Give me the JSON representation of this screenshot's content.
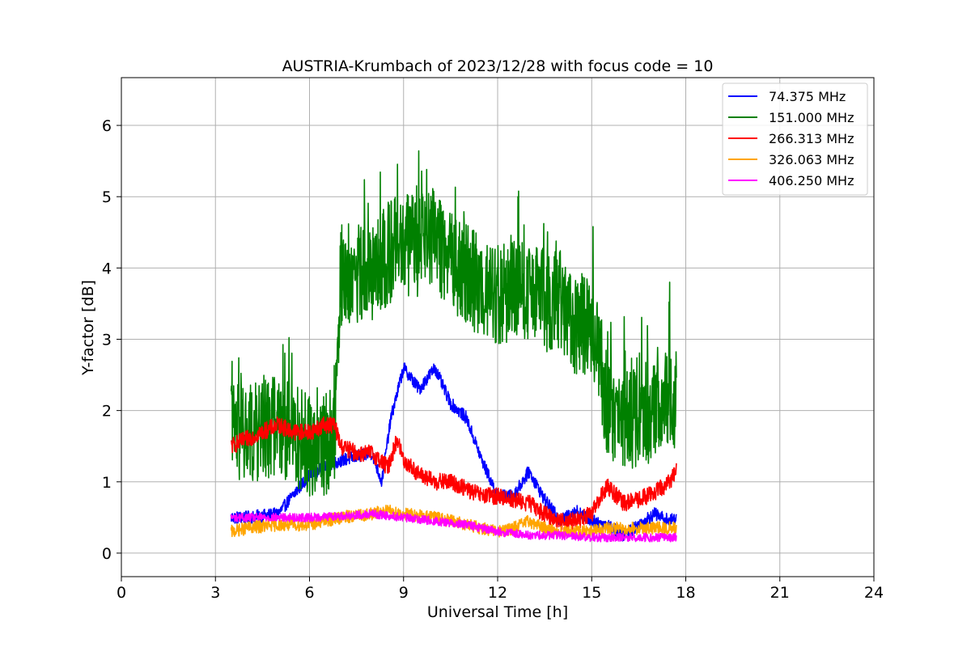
{
  "chart_data": {
    "type": "line",
    "title": "AUSTRIA-Krumbach of 2023/12/28 with focus code = 10",
    "xlabel": "Universal Time [h]",
    "ylabel": "Y-factor [dB]",
    "xlim": [
      0,
      24
    ],
    "ylim": [
      -0.33,
      6.67
    ],
    "xticks": [
      0,
      3,
      6,
      9,
      12,
      15,
      18,
      21,
      24
    ],
    "yticks": [
      0,
      1,
      2,
      3,
      4,
      5,
      6
    ],
    "grid": true,
    "legend_position": "top-right",
    "series": [
      {
        "name": " 74.375 MHz",
        "color": "#0000ff",
        "x": [
          3.5,
          4.0,
          5.0,
          6.0,
          7.0,
          7.5,
          8.0,
          8.3,
          8.6,
          9.0,
          9.5,
          10.0,
          10.5,
          11.0,
          11.5,
          12.0,
          12.5,
          13.0,
          13.5,
          14.0,
          14.5,
          15.0,
          15.5,
          16.0,
          16.5,
          17.0,
          17.5,
          17.7
        ],
        "y": [
          0.5,
          0.5,
          0.55,
          1.1,
          1.3,
          1.35,
          1.4,
          1.0,
          1.9,
          2.6,
          2.3,
          2.6,
          2.1,
          1.9,
          1.3,
          0.8,
          0.8,
          1.15,
          0.75,
          0.45,
          0.6,
          0.45,
          0.4,
          0.25,
          0.4,
          0.55,
          0.45,
          0.5
        ],
        "noise": 0.09
      },
      {
        "name": "151.000 MHz",
        "color": "#008000",
        "x": [
          3.5,
          4.0,
          5.0,
          6.0,
          6.5,
          6.8,
          7.0,
          7.5,
          8.0,
          8.5,
          9.0,
          9.5,
          10.0,
          10.5,
          11.0,
          11.5,
          12.0,
          12.5,
          13.0,
          13.5,
          14.0,
          14.5,
          15.0,
          15.2,
          15.5,
          16.0,
          16.5,
          17.0,
          17.5,
          17.7
        ],
        "y": [
          1.5,
          1.4,
          1.6,
          1.3,
          1.3,
          1.5,
          3.7,
          3.7,
          3.7,
          4.0,
          4.1,
          4.1,
          4.2,
          3.9,
          3.7,
          3.5,
          3.4,
          3.5,
          3.4,
          3.3,
          3.3,
          3.0,
          2.9,
          2.7,
          1.8,
          1.6,
          1.7,
          1.8,
          1.9,
          1.8
        ],
        "noise": 0.9
      },
      {
        "name": "266.313 MHz",
        "color": "#ff0000",
        "x": [
          3.5,
          4.0,
          4.5,
          5.0,
          5.5,
          6.0,
          6.5,
          6.8,
          7.0,
          7.5,
          8.0,
          8.5,
          8.8,
          9.0,
          9.5,
          10.0,
          10.5,
          11.0,
          11.5,
          12.0,
          12.5,
          13.0,
          13.5,
          14.0,
          14.5,
          15.0,
          15.5,
          16.0,
          16.5,
          17.0,
          17.5,
          17.7
        ],
        "y": [
          1.5,
          1.6,
          1.7,
          1.8,
          1.7,
          1.7,
          1.8,
          1.8,
          1.5,
          1.4,
          1.4,
          1.2,
          1.6,
          1.3,
          1.1,
          1.0,
          1.0,
          0.9,
          0.8,
          0.8,
          0.75,
          0.7,
          0.55,
          0.45,
          0.45,
          0.55,
          0.95,
          0.7,
          0.75,
          0.85,
          1.0,
          1.2
        ],
        "noise": 0.12
      },
      {
        "name": "326.063 MHz",
        "color": "#ffa500",
        "x": [
          3.5,
          4.0,
          5.0,
          6.0,
          7.0,
          8.0,
          8.5,
          9.0,
          10.0,
          11.0,
          12.0,
          12.5,
          13.0,
          13.5,
          14.0,
          14.5,
          15.0,
          15.5,
          16.0,
          17.0,
          17.7
        ],
        "y": [
          0.3,
          0.35,
          0.4,
          0.4,
          0.5,
          0.55,
          0.6,
          0.55,
          0.5,
          0.4,
          0.3,
          0.35,
          0.45,
          0.35,
          0.3,
          0.3,
          0.3,
          0.35,
          0.35,
          0.35,
          0.35
        ],
        "noise": 0.09
      },
      {
        "name": "406.250 MHz",
        "color": "#ff00ff",
        "x": [
          3.5,
          4.0,
          5.0,
          6.0,
          7.0,
          8.0,
          9.0,
          10.0,
          11.0,
          12.0,
          13.0,
          14.0,
          15.0,
          16.0,
          17.0,
          17.7
        ],
        "y": [
          0.5,
          0.5,
          0.5,
          0.5,
          0.52,
          0.55,
          0.5,
          0.45,
          0.4,
          0.3,
          0.25,
          0.25,
          0.22,
          0.22,
          0.22,
          0.22
        ],
        "noise": 0.06
      }
    ]
  }
}
